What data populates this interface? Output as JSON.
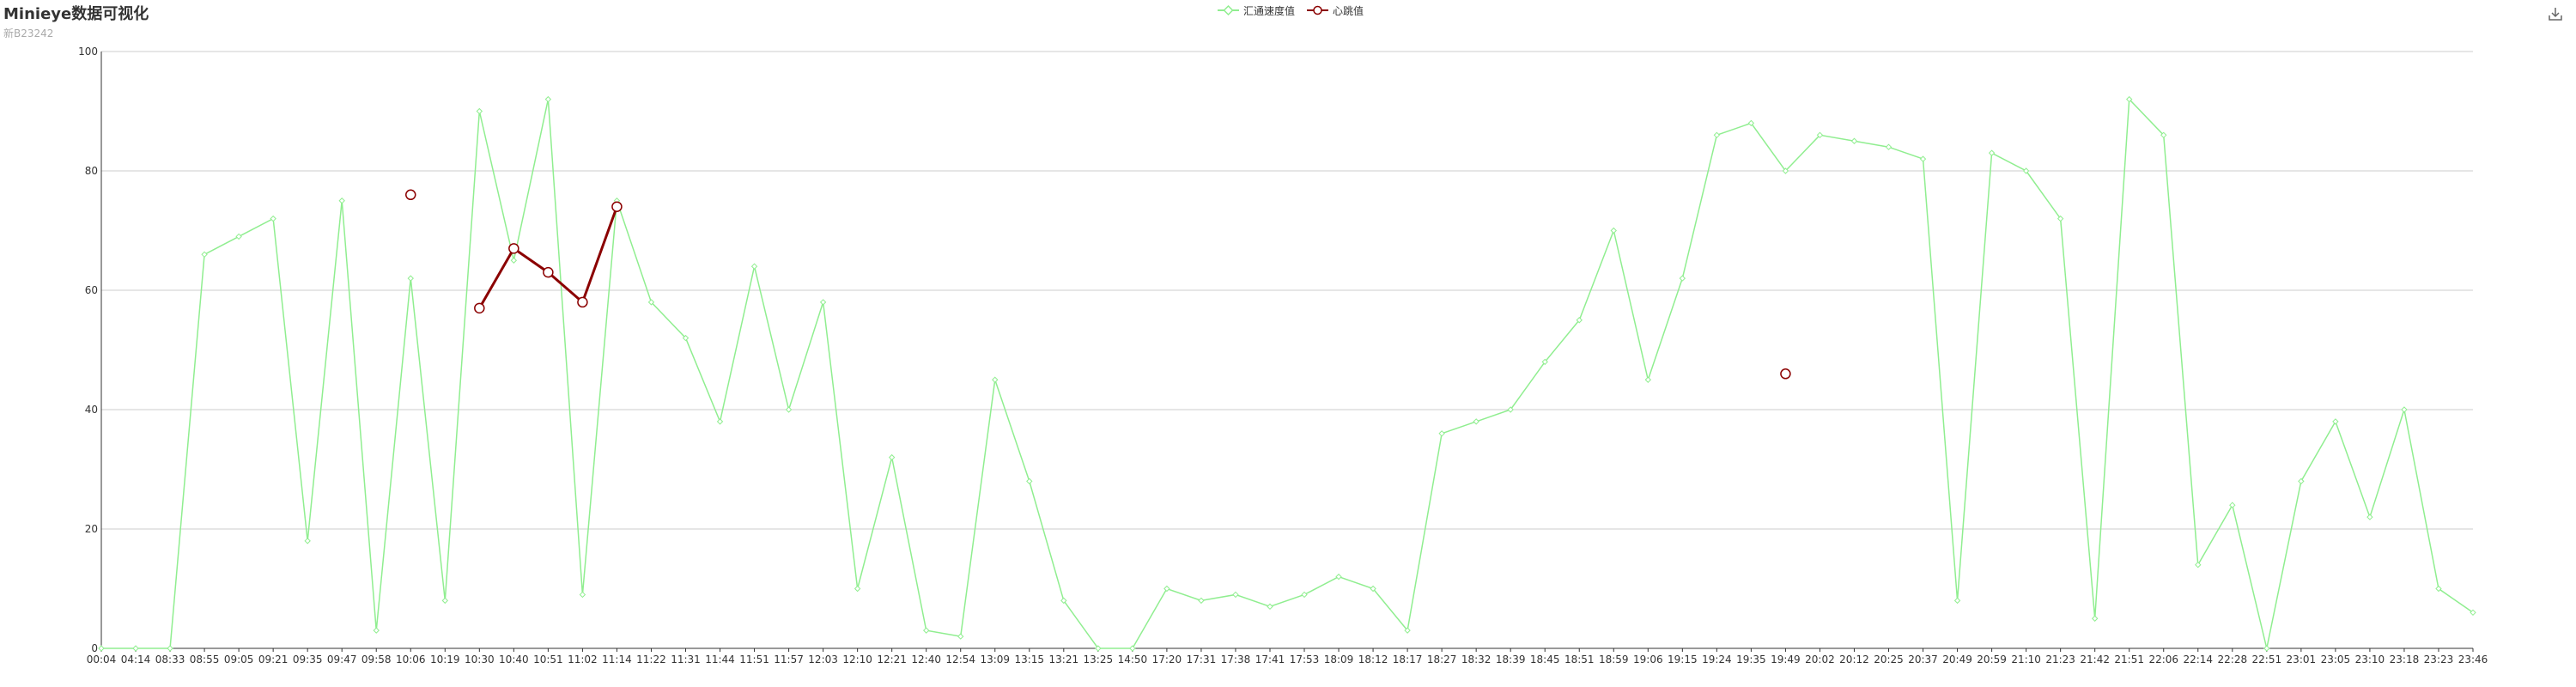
{
  "title": "Minieye数据可视化",
  "subtitle": "新B23242",
  "colors": {
    "speed": "#90EE90",
    "heart": "#8B0000",
    "grid": "#cccccc",
    "axis": "#333333"
  },
  "toolbar": {
    "download_icon": "download-icon"
  },
  "chart_data": {
    "type": "line",
    "title": "Minieye数据可视化",
    "subtitle": "新B23242",
    "legend_position": "top-center",
    "grid": true,
    "ylim": [
      0,
      100
    ],
    "yticks": [
      0,
      20,
      40,
      60,
      80,
      100
    ],
    "categories": [
      "00:04",
      "04:14",
      "08:33",
      "08:55",
      "09:05",
      "09:21",
      "09:35",
      "09:47",
      "09:58",
      "10:06",
      "10:19",
      "10:30",
      "10:40",
      "10:51",
      "11:02",
      "11:14",
      "11:22",
      "11:31",
      "11:44",
      "11:51",
      "11:57",
      "12:03",
      "12:10",
      "12:21",
      "12:40",
      "12:54",
      "13:09",
      "13:15",
      "13:21",
      "13:25",
      "14:50",
      "17:20",
      "17:31",
      "17:38",
      "17:41",
      "17:53",
      "18:09",
      "18:12",
      "18:17",
      "18:27",
      "18:32",
      "18:39",
      "18:45",
      "18:51",
      "18:59",
      "19:06",
      "19:15",
      "19:24",
      "19:35",
      "19:49",
      "20:02",
      "20:12",
      "20:25",
      "20:37",
      "20:49",
      "20:59",
      "21:10",
      "21:23",
      "21:42",
      "21:51",
      "22:06",
      "22:14",
      "22:28",
      "22:51",
      "23:01",
      "23:05",
      "23:10",
      "23:18",
      "23:23",
      "23:46"
    ],
    "series": [
      {
        "name": "汇通速度值",
        "color": "#90EE90",
        "marker": "diamond",
        "values": [
          0,
          0,
          0,
          66,
          69,
          72,
          18,
          75,
          3,
          62,
          8,
          90,
          65,
          92,
          9,
          75,
          58,
          52,
          38,
          64,
          40,
          58,
          10,
          32,
          3,
          2,
          45,
          28,
          8,
          0,
          0,
          10,
          8,
          9,
          7,
          9,
          12,
          10,
          3,
          36,
          38,
          40,
          48,
          55,
          70,
          45,
          62,
          86,
          88,
          80,
          86,
          85,
          84,
          82,
          8,
          83,
          80,
          72,
          5,
          92,
          86,
          14,
          24,
          0,
          28,
          38,
          22,
          40,
          10,
          6
        ]
      },
      {
        "name": "心跳值",
        "color": "#8B0000",
        "marker": "circle",
        "values": [
          null,
          null,
          null,
          null,
          null,
          null,
          null,
          null,
          null,
          76,
          null,
          57,
          67,
          63,
          58,
          74,
          null,
          null,
          null,
          null,
          null,
          null,
          null,
          null,
          null,
          null,
          null,
          null,
          null,
          null,
          null,
          null,
          null,
          null,
          null,
          null,
          null,
          null,
          null,
          null,
          null,
          null,
          null,
          null,
          null,
          null,
          null,
          null,
          null,
          46,
          null,
          null,
          null,
          null,
          null,
          null,
          null,
          null,
          null,
          null,
          null,
          null,
          null,
          null,
          null,
          null,
          null,
          null,
          null,
          null
        ]
      }
    ]
  }
}
